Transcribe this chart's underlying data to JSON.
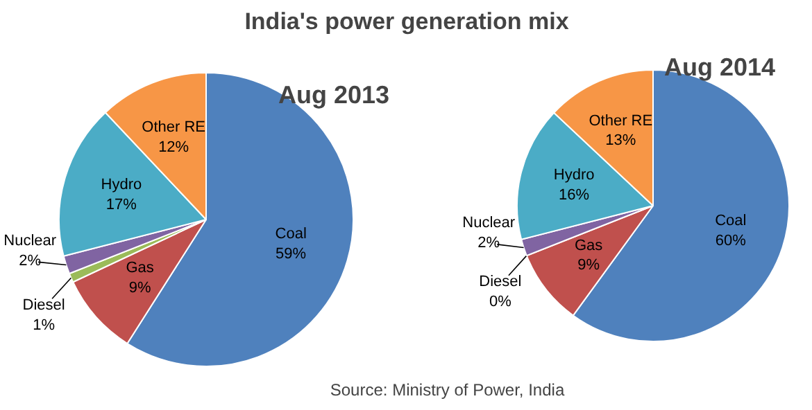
{
  "chart_data": [
    {
      "type": "other",
      "title": "India's power generation mix",
      "annotations": [
        "Source: Ministry of Power, India"
      ]
    },
    {
      "type": "pie",
      "title": "Aug 2013",
      "categories": [
        "Coal",
        "Gas",
        "Diesel",
        "Nuclear",
        "Hydro",
        "Other RE"
      ],
      "values": [
        59,
        9,
        1,
        2,
        17,
        12
      ],
      "value_labels": [
        "59%",
        "9%",
        "1%",
        "2%",
        "17%",
        "12%"
      ],
      "colors": [
        "#4f81bd",
        "#c0504d",
        "#9bbb59",
        "#8064a2",
        "#4bacc6",
        "#f79646"
      ]
    },
    {
      "type": "pie",
      "title": "Aug 2014",
      "categories": [
        "Coal",
        "Gas",
        "Diesel",
        "Nuclear",
        "Hydro",
        "Other RE"
      ],
      "values": [
        60,
        9,
        0,
        2,
        16,
        13
      ],
      "value_labels": [
        "60%",
        "9%",
        "0%",
        "2%",
        "16%",
        "13%"
      ],
      "colors": [
        "#4f81bd",
        "#c0504d",
        "#9bbb59",
        "#8064a2",
        "#4bacc6",
        "#f79646"
      ]
    }
  ]
}
